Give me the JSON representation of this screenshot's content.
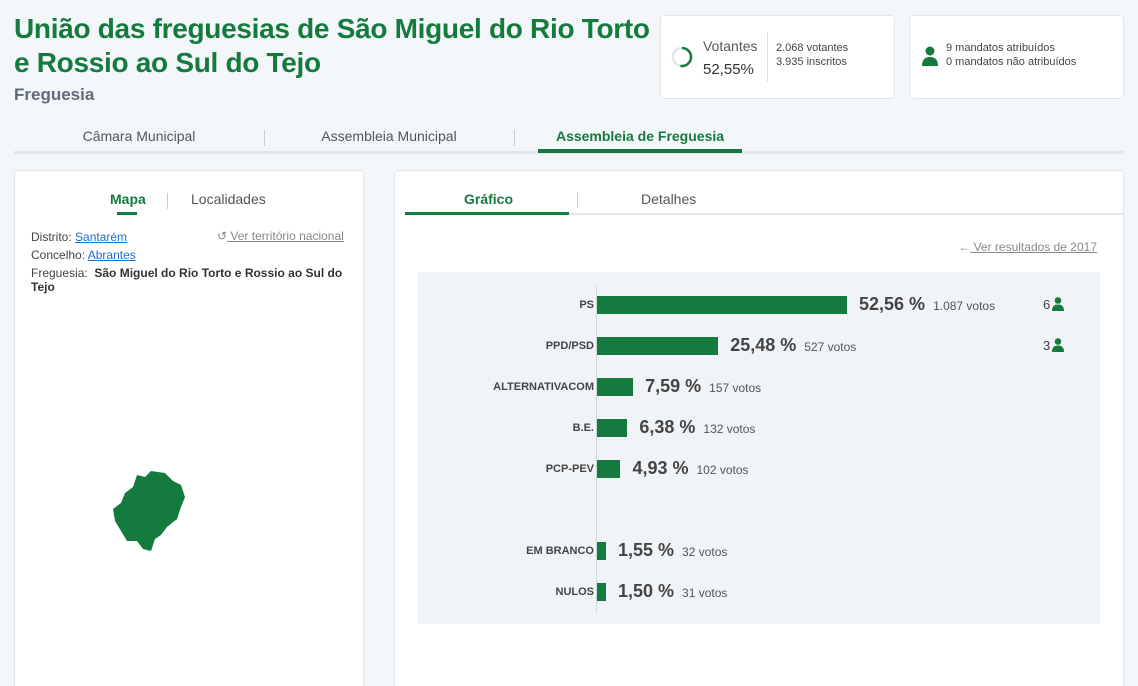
{
  "header": {
    "title": "União das freguesias de São Miguel do Rio Torto e Rossio ao Sul do Tejo",
    "subtitle": "Freguesia"
  },
  "votes_card": {
    "label": "Votantes",
    "pct": "52,55%",
    "voters": "2.068 votantes",
    "registered": "3.935 inscritos",
    "fraction": 0.5255
  },
  "mandates_card": {
    "assigned": "9 mandatos atribuídos",
    "unassigned": "0 mandatos não atribuídos"
  },
  "main_tabs": [
    {
      "label": "Câmara Municipal"
    },
    {
      "label": "Assembleia Municipal"
    },
    {
      "label": "Assembleia de Freguesia"
    }
  ],
  "left_panel": {
    "tabs": [
      {
        "label": "Mapa"
      },
      {
        "label": "Localidades"
      }
    ],
    "district_label": "Distrito:",
    "district_value": "Santarém",
    "municipality_label": "Concelho:",
    "municipality_value": "Abrantes",
    "parish_label": "Freguesia:",
    "parish_value": "São Miguel do Rio Torto e Rossio ao Sul do Tejo",
    "national_link": "Ver território nacional",
    "map_color": "#157a3d"
  },
  "right_panel": {
    "tabs": [
      {
        "label": "Gráfico"
      },
      {
        "label": "Detalhes"
      }
    ],
    "previous_link": "Ver resultados de 2017"
  },
  "chart_data": {
    "type": "bar",
    "orientation": "horizontal",
    "categories": [
      "PS",
      "PPD/PSD",
      "ALTERNATIVACOM",
      "B.E.",
      "PCP-PEV",
      "EM BRANCO",
      "NULOS"
    ],
    "values": [
      52.56,
      25.48,
      7.59,
      6.38,
      4.93,
      1.55,
      1.5
    ],
    "pct_labels": [
      "52,56 %",
      "25,48 %",
      "7,59 %",
      "6,38 %",
      "4,93 %",
      "1,55 %",
      "1,50 %"
    ],
    "votes_labels": [
      "1.087 votos",
      "527 votos",
      "157 votos",
      "132 votos",
      "102 votos",
      "32 votos",
      "31 votos"
    ],
    "seats": [
      "6",
      "3",
      "",
      "",
      "",
      "",
      ""
    ],
    "bar_color": "#157a3d"
  }
}
